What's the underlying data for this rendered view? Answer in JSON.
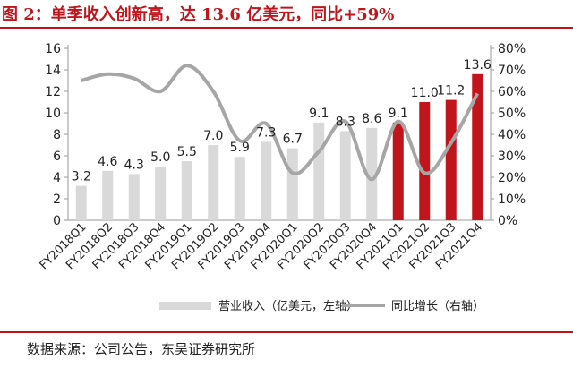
{
  "title": "图 2：单季收入创新高，达 13.6 亿美元，同比+59%",
  "source": "数据来源：公司公告，东吴证券研究所",
  "colors": {
    "bar_gray": "#d9d9d9",
    "bar_red": "#c0151b",
    "line_gray": "#a6a6a6",
    "accent": "#c0151b"
  },
  "chart_data": {
    "type": "bar",
    "categories": [
      "FY2018Q1",
      "FY2018Q2",
      "FY2018Q3",
      "FY2018Q4",
      "FY2019Q1",
      "FY2019Q2",
      "FY2019Q3",
      "FY2019Q4",
      "FY2020Q1",
      "FY2020Q2",
      "FY2020Q3",
      "FY2020Q4",
      "FY2021Q1",
      "FY2021Q2",
      "FY2021Q3",
      "FY2021Q4"
    ],
    "series": [
      {
        "name": "营业收入（亿美元，左轴）",
        "type": "bar",
        "axis": "left",
        "values": [
          3.2,
          4.6,
          4.3,
          5.0,
          5.5,
          7.0,
          5.9,
          7.3,
          6.7,
          9.1,
          8.3,
          8.6,
          9.1,
          11.0,
          11.2,
          13.6
        ],
        "labels": [
          "3.2",
          "4.6",
          "4.3",
          "5.0",
          "5.5",
          "7.0",
          "5.9",
          "7.3",
          "6.7",
          "9.1",
          "8.3",
          "8.6",
          "9.1",
          "11.0",
          "11.2",
          "13.6"
        ],
        "highlight_from_index": 12
      },
      {
        "name": "同比增长（右轴）",
        "type": "line",
        "axis": "right",
        "values": [
          0.65,
          0.68,
          0.66,
          0.6,
          0.72,
          0.6,
          0.37,
          0.45,
          0.22,
          0.32,
          0.46,
          0.19,
          0.46,
          0.22,
          0.36,
          0.59
        ]
      }
    ],
    "y_left": {
      "min": 0,
      "max": 16,
      "step": 2,
      "ticks": [
        "0",
        "2",
        "4",
        "6",
        "8",
        "10",
        "12",
        "14",
        "16"
      ]
    },
    "y_right": {
      "min": 0,
      "max": 0.8,
      "step": 0.1,
      "ticks": [
        "0%",
        "10%",
        "20%",
        "30%",
        "40%",
        "50%",
        "60%",
        "70%",
        "80%"
      ]
    },
    "grid": false,
    "legend_position": "bottom"
  }
}
